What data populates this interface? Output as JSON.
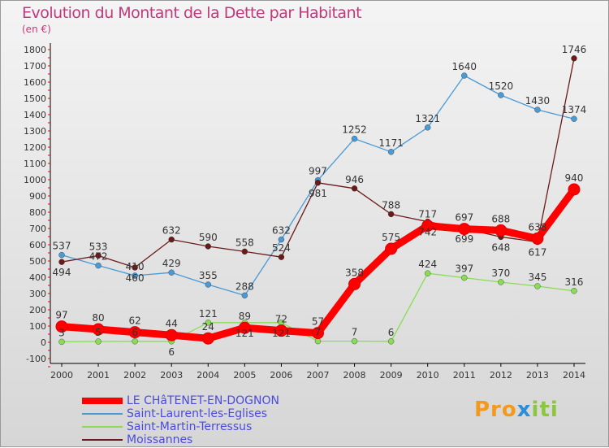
{
  "chart_data": {
    "type": "line",
    "title": "Evolution du Montant de la Dette par Habitant",
    "ylabel": "(en €)",
    "x": [
      "2000",
      "2001",
      "2002",
      "2003",
      "2004",
      "2005",
      "2006",
      "2007",
      "2008",
      "2009",
      "2010",
      "2011",
      "2012",
      "2013",
      "2014"
    ],
    "ylim": [
      -100,
      1800
    ],
    "yticks": [
      "-100",
      "0",
      "100",
      "200",
      "300",
      "400",
      "500",
      "600",
      "700",
      "800",
      "900",
      "1000",
      "1100",
      "1200",
      "1300",
      "1400",
      "1500",
      "1600",
      "1700",
      "1800"
    ],
    "series": [
      {
        "name": "LE CHâTENET-EN-DOGNON",
        "color": "#ff0000",
        "values": [
          97,
          80,
          62,
          44,
          24,
          89,
          72,
          57,
          358,
          575,
          717,
          697,
          688,
          638,
          940
        ]
      },
      {
        "name": "Saint-Laurent-les-Eglises",
        "color": "#4a9ad6",
        "values": [
          537,
          472,
          410,
          429,
          355,
          288,
          632,
          997,
          1252,
          1171,
          1321,
          1640,
          1520,
          1430,
          1374
        ]
      },
      {
        "name": "Saint-Martin-Terressus",
        "color": "#88dd55",
        "values": [
          3,
          5,
          6,
          6,
          121,
          121,
          121,
          7,
          7,
          6,
          424,
          397,
          370,
          345,
          316
        ]
      },
      {
        "name": "Moissannes",
        "color": "#6b1a1a",
        "values": [
          494,
          533,
          460,
          632,
          590,
          558,
          524,
          981,
          946,
          788,
          742,
          699,
          648,
          617,
          1746
        ]
      }
    ]
  },
  "logo": "Proxiti"
}
